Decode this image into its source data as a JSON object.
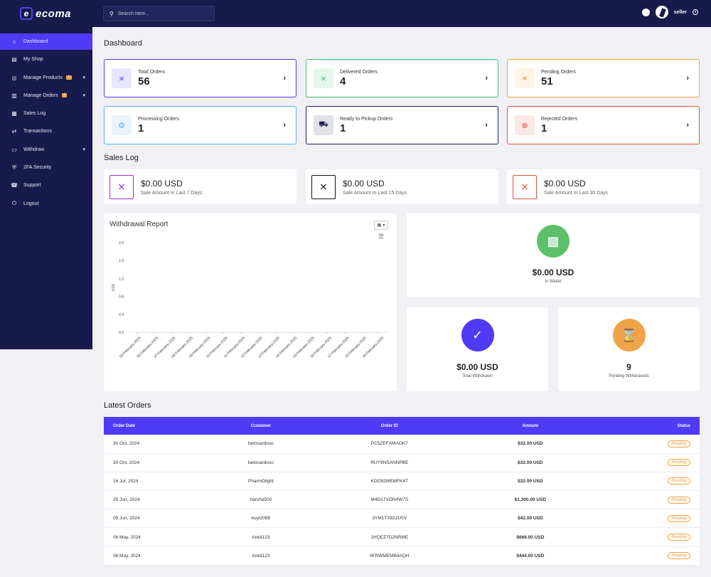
{
  "app": {
    "brand": "ecoma",
    "brand_mark": "e"
  },
  "search": {
    "placeholder": "Search here..."
  },
  "user": {
    "name": "seller"
  },
  "sidebar": {
    "items": [
      {
        "label": "Dashboard",
        "icon": "home-icon",
        "active": true
      },
      {
        "label": "My Shop",
        "icon": "shop-icon"
      },
      {
        "label": "Manage Products",
        "icon": "product-icon",
        "badge": "!",
        "chevron": true
      },
      {
        "label": "Manage Orders",
        "icon": "orders-icon",
        "badge": "!",
        "chevron": true
      },
      {
        "label": "Sales Log",
        "icon": "sales-log-icon"
      },
      {
        "label": "Transactions",
        "icon": "transactions-icon"
      },
      {
        "label": "Withdraw",
        "icon": "withdraw-icon",
        "chevron": true
      },
      {
        "label": "2FA Security",
        "icon": "shield-icon"
      },
      {
        "label": "Support",
        "icon": "support-icon"
      },
      {
        "label": "Logout",
        "icon": "logout-icon"
      }
    ]
  },
  "dashboard": {
    "title": "Dashboard",
    "stats": [
      {
        "label": "Total Orders",
        "value": "56",
        "color": "#4f3bf5",
        "icon": "cart-icon"
      },
      {
        "label": "Delivered Orders",
        "value": "4",
        "color": "#3bbf6b",
        "icon": "cart-icon"
      },
      {
        "label": "Pending Orders",
        "value": "51",
        "color": "#f0a44a",
        "icon": "spinner-icon"
      },
      {
        "label": "Processing Orders",
        "value": "1",
        "color": "#5ab0f0",
        "icon": "gear-icon"
      },
      {
        "label": "Ready to Pickup Orders",
        "value": "1",
        "color": "#1f2150",
        "icon": "truck-icon"
      },
      {
        "label": "Rejected Orders",
        "value": "1",
        "color": "#e0543d",
        "icon": "close-circle-icon"
      }
    ]
  },
  "sales_log": {
    "title": "Sales Log",
    "items": [
      {
        "amount": "$0.00 USD",
        "label": "Sale Amount In Last 7 Days",
        "color": "#8a35c8"
      },
      {
        "amount": "$0.00 USD",
        "label": "Sale Amount In Last 15 Days",
        "color": "#111111"
      },
      {
        "amount": "$0.00 USD",
        "label": "Sale Amount In Last 30 Days",
        "color": "#e0543d"
      }
    ]
  },
  "withdrawal_report": {
    "title": "Withdrawal Report",
    "chart_data": {
      "type": "line",
      "title": "Withdrawal Report",
      "ylabel": "USD",
      "xlabel": "",
      "ylim": [
        0,
        2
      ],
      "yticks": [
        "2.0",
        "1.6",
        "1.2",
        "0.8",
        "0.4",
        "0.0"
      ],
      "categories": [
        "05-February-2025",
        "06-February-2025",
        "07-February-2025",
        "08-February-2025",
        "09-February-2025",
        "10-February-2025",
        "11-February-2025",
        "12-February-2025",
        "13-February-2025",
        "14-February-2025",
        "15-February-2025",
        "16-February-2025",
        "17-February-2025",
        "18-February-2025",
        "19-February-2025"
      ],
      "series": [
        {
          "values": [
            0,
            0,
            0,
            0,
            0,
            0,
            0,
            0,
            0,
            0,
            0,
            0,
            0,
            0,
            0
          ]
        }
      ]
    }
  },
  "wallet": {
    "amount": "$0.00 USD",
    "label": "In Wallet",
    "color": "#5cc06a"
  },
  "total_withdrawn": {
    "amount": "$0.00 USD",
    "label": "Total Withdrawn",
    "color": "#4f3bf5"
  },
  "pending_withdrawals": {
    "amount": "9",
    "label": "Pending Withdrawals",
    "color": "#f0a44a"
  },
  "latest_orders": {
    "title": "Latest Orders",
    "columns": [
      "Order Date",
      "Customer",
      "Order ID",
      "Amount",
      "Status"
    ],
    "rows": [
      [
        "30 Oct, 2024",
        "betocardoso",
        "PC5ZEFXMAOK7",
        "$32.00 USD",
        "Pending"
      ],
      [
        "30 Oct, 2024",
        "betocardoso",
        "RUY9NSANNPBE",
        "$32.00 USD",
        "Pending"
      ],
      [
        "16 Jul, 2024",
        "PharmDlight",
        "KDO92MEMFK4T",
        "$32.00 USD",
        "Pending"
      ],
      [
        "25 Jun, 2024",
        "harsha500",
        "M4D17VON4W7S",
        "$1,300.00 USD",
        "Pending"
      ],
      [
        "09 Jun, 2024",
        "kuyt2088",
        "3YM1TX822U5V",
        "$42.00 USD",
        "Pending"
      ],
      [
        "06 May, 2024",
        "Ankit123",
        "1HQEZ7D2NRME",
        "$666.00 USD",
        "Pending"
      ],
      [
        "06 May, 2024",
        "Ankit123",
        "9FRWMEMB4AQH",
        "$444.00 USD",
        "Pending"
      ]
    ]
  }
}
